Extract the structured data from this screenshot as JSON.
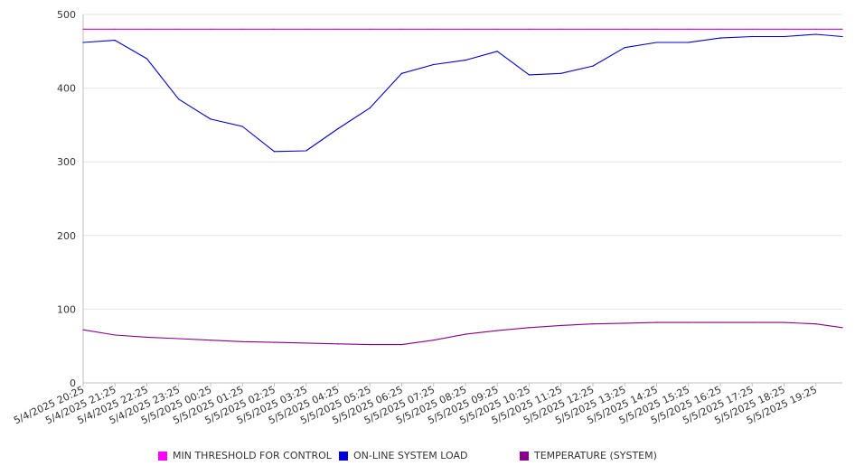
{
  "chart_data": {
    "type": "line",
    "ylim": [
      0,
      500
    ],
    "y_ticks": [
      0,
      100,
      200,
      300,
      400,
      500
    ],
    "grid": "horizontal",
    "legend_position": "bottom",
    "x_tick_labels": [
      "5/4/2025 20:25",
      "5/4/2025 21:25",
      "5/4/2025 22:25",
      "5/4/2025 23:25",
      "5/5/2025 00:25",
      "5/5/2025 01:25",
      "5/5/2025 02:25",
      "5/5/2025 03:25",
      "5/5/2025 04:25",
      "5/5/2025 05:25",
      "5/5/2025 06:25",
      "5/5/2025 07:25",
      "5/5/2025 08:25",
      "5/5/2025 09:25",
      "5/5/2025 10:25",
      "5/5/2025 11:25",
      "5/5/2025 12:25",
      "5/5/2025 13:25",
      "5/5/2025 14:25",
      "5/5/2025 15:25",
      "5/5/2025 16:25",
      "5/5/2025 17:25",
      "5/5/2025 18:25",
      "5/5/2025 19:25"
    ],
    "x_hours": [
      0,
      1,
      2,
      3,
      4,
      5,
      6,
      7,
      8,
      9,
      10,
      11,
      12,
      13,
      14,
      15,
      16,
      17,
      18,
      19,
      20,
      21,
      22,
      23,
      23.83
    ],
    "series": [
      {
        "name": "MIN THRESHOLD FOR CONTROL",
        "color": "#cc00cc",
        "values": [
          480,
          480,
          480,
          480,
          480,
          480,
          480,
          480,
          480,
          480,
          480,
          480,
          480,
          480,
          480,
          480,
          480,
          480,
          480,
          480,
          480,
          480,
          480,
          480,
          480
        ]
      },
      {
        "name": "ON-LINE SYSTEM LOAD",
        "color": "#0000cc",
        "values": [
          462,
          465,
          440,
          385,
          358,
          348,
          314,
          315,
          345,
          373,
          420,
          432,
          438,
          450,
          418,
          420,
          430,
          455,
          462,
          462,
          468,
          470,
          470,
          473,
          470
        ]
      },
      {
        "name": "TEMPERATURE (SYSTEM)",
        "color": "#880088",
        "values": [
          72,
          65,
          62,
          60,
          58,
          56,
          55,
          54,
          53,
          52,
          52,
          58,
          66,
          71,
          75,
          78,
          80,
          81,
          82,
          82,
          82,
          82,
          82,
          80,
          75
        ]
      }
    ]
  }
}
